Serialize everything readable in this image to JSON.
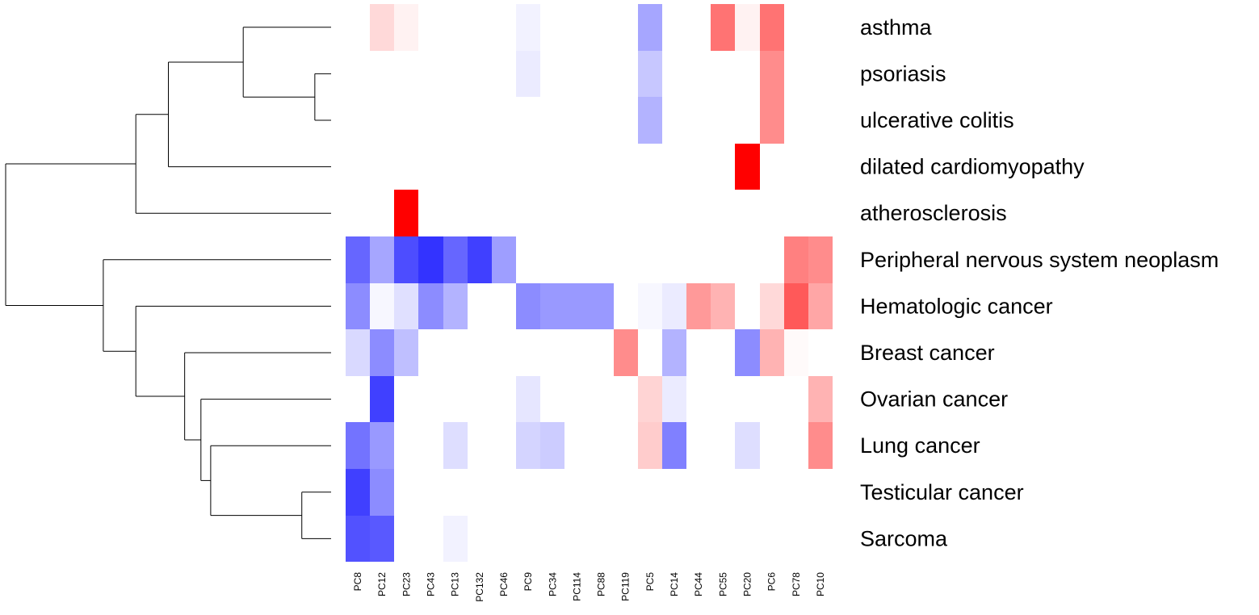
{
  "chart_data": {
    "type": "heatmap",
    "title": "",
    "rows": [
      "asthma",
      "psoriasis",
      "ulcerative colitis",
      "dilated cardiomyopathy",
      "atherosclerosis",
      "Peripheral nervous system neoplasm",
      "Hematologic cancer",
      "Breast cancer",
      "Ovarian cancer",
      "Lung cancer",
      "Testicular cancer",
      "Sarcoma"
    ],
    "columns": [
      "PC8",
      "PC12",
      "PC23",
      "PC43",
      "PC13",
      "PC132",
      "PC46",
      "PC9",
      "PC34",
      "PC114",
      "PC88",
      "PC119",
      "PC5",
      "PC14",
      "PC44",
      "PC55",
      "PC20",
      "PC6",
      "PC78",
      "PC10"
    ],
    "value_range": [
      -1,
      1
    ],
    "colors": {
      "negative": "#0000ff",
      "zero": "#ffffff",
      "positive": "#ff0000",
      "line": "#000000"
    },
    "values": [
      [
        0,
        0.15,
        0.05,
        0,
        0,
        0,
        0,
        -0.05,
        0,
        0,
        0,
        0,
        -0.35,
        0,
        0,
        0.55,
        0.05,
        0.55,
        0,
        0
      ],
      [
        0,
        0,
        0,
        0,
        0,
        0,
        0,
        -0.08,
        0,
        0,
        0,
        0,
        -0.22,
        0,
        0,
        0,
        0,
        0.45,
        0,
        0
      ],
      [
        0,
        0,
        0,
        0,
        0,
        0,
        0,
        0,
        0,
        0,
        0,
        0,
        -0.3,
        0,
        0,
        0,
        0,
        0.45,
        0,
        0
      ],
      [
        0,
        0,
        0,
        0,
        0,
        0,
        0,
        0,
        0,
        0,
        0,
        0,
        0,
        0,
        0,
        0,
        1.0,
        0,
        0,
        0
      ],
      [
        0,
        0,
        1.0,
        0,
        0,
        0,
        0,
        0,
        0,
        0,
        0,
        0,
        0,
        0,
        0,
        0,
        0,
        0,
        0,
        0
      ],
      [
        -0.6,
        -0.35,
        -0.7,
        -0.8,
        -0.6,
        -0.75,
        -0.38,
        0,
        0,
        0,
        0,
        0,
        0,
        0,
        0,
        0,
        0,
        0,
        0.5,
        0.45
      ],
      [
        -0.45,
        -0.03,
        -0.12,
        -0.45,
        -0.3,
        0,
        0,
        -0.45,
        -0.4,
        -0.4,
        -0.4,
        0,
        -0.03,
        -0.08,
        0.4,
        0.3,
        0,
        0.15,
        0.65,
        0.35
      ],
      [
        -0.15,
        -0.45,
        -0.25,
        0,
        0,
        0,
        0,
        0,
        0,
        0,
        0,
        0.45,
        0,
        -0.3,
        0,
        0,
        -0.45,
        0.3,
        0.02,
        0
      ],
      [
        0,
        -0.75,
        0,
        0,
        0,
        0,
        0,
        -0.1,
        0,
        0,
        0,
        0,
        0.17,
        -0.08,
        0,
        0,
        0,
        0,
        0,
        0.3
      ],
      [
        -0.55,
        -0.4,
        0,
        0,
        -0.13,
        0,
        0,
        -0.17,
        -0.2,
        0,
        0,
        0,
        0.2,
        -0.5,
        0,
        0,
        -0.13,
        0,
        0,
        0.45
      ],
      [
        -0.75,
        -0.45,
        0,
        0,
        0,
        0,
        0,
        0,
        0,
        0,
        0,
        0,
        0,
        0,
        0,
        0,
        0,
        0,
        0,
        0
      ],
      [
        -0.68,
        -0.65,
        0,
        0,
        -0.05,
        0,
        0,
        0,
        0,
        0,
        0,
        0,
        0,
        0,
        0,
        0,
        0,
        0,
        0,
        0
      ]
    ],
    "row_dendrogram": {
      "leaf_order": [
        0,
        1,
        2,
        3,
        4,
        5,
        6,
        7,
        8,
        9,
        10,
        11
      ],
      "merges": [
        [
          1,
          2
        ],
        [
          10,
          11
        ],
        [
          0,
          12
        ],
        [
          9,
          13
        ],
        [
          3,
          14
        ],
        [
          8,
          15
        ],
        [
          4,
          16
        ],
        [
          7,
          17
        ],
        [
          6,
          19
        ],
        [
          5,
          20
        ],
        [
          18,
          21
        ]
      ],
      "heights": [
        0.05,
        0.09,
        0.27,
        0.37,
        0.5,
        0.4,
        0.6,
        0.45,
        0.6,
        0.7,
        1.0
      ]
    }
  }
}
